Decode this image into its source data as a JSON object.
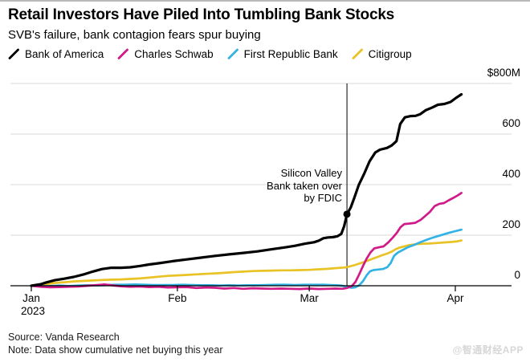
{
  "header": {
    "title": "Retail Investors Have Piled Into Tumbling Bank Stocks",
    "subtitle": "SVB's failure, bank contagion fears spur buying"
  },
  "footer": {
    "source": "Source: Vanda Research",
    "note": "Note: Data show cumulative net buying this year"
  },
  "watermark": "@智通财经APP",
  "chart_data": {
    "type": "line",
    "title": "Retail Investors Have Piled Into Tumbling Bank Stocks",
    "subtitle": "SVB's failure, bank contagion fears spur buying",
    "unit": "USD millions, cumulative net buying",
    "legend_position": "top",
    "grid": true,
    "x_axis": {
      "tick_labels": [
        "Jan",
        "Feb",
        "Mar",
        "Apr"
      ],
      "tick_days": [
        0,
        31,
        59,
        90
      ],
      "year_label": "2023",
      "domain_days": [
        0,
        91.5
      ]
    },
    "y_axis": {
      "range": [
        0,
        800
      ],
      "ticks": [
        {
          "label": "$800M",
          "value": 800
        },
        {
          "label": "600",
          "value": 600
        },
        {
          "label": "400",
          "value": 400
        },
        {
          "label": "200",
          "value": 200
        },
        {
          "label": "0",
          "value": 0
        }
      ]
    },
    "annotation": {
      "text": "Silicon Valley\nBank taken over\nby FDIC",
      "day": 67,
      "value": 283
    },
    "series": [
      {
        "name": "Bank of America",
        "color": "#000000",
        "width": 3.2,
        "points": [
          [
            0,
            0
          ],
          [
            2,
            6
          ],
          [
            3,
            12
          ],
          [
            5,
            22
          ],
          [
            7,
            28
          ],
          [
            9,
            35
          ],
          [
            11,
            44
          ],
          [
            13,
            56
          ],
          [
            15,
            66
          ],
          [
            17,
            71
          ],
          [
            19,
            71
          ],
          [
            21,
            73
          ],
          [
            23,
            78
          ],
          [
            25,
            84
          ],
          [
            27,
            89
          ],
          [
            30,
            97
          ],
          [
            33,
            104
          ],
          [
            36,
            111
          ],
          [
            39,
            118
          ],
          [
            42,
            124
          ],
          [
            45,
            130
          ],
          [
            48,
            136
          ],
          [
            51,
            144
          ],
          [
            54,
            152
          ],
          [
            56,
            158
          ],
          [
            58,
            166
          ],
          [
            60,
            172
          ],
          [
            61,
            178
          ],
          [
            62,
            188
          ],
          [
            63,
            191
          ],
          [
            64,
            192
          ],
          [
            65,
            196
          ],
          [
            65.8,
            205
          ],
          [
            66.4,
            235
          ],
          [
            67,
            283
          ],
          [
            67.8,
            310
          ],
          [
            68.5,
            345
          ],
          [
            69.5,
            398
          ],
          [
            70.7,
            445
          ],
          [
            71.8,
            492
          ],
          [
            73,
            527
          ],
          [
            74,
            538
          ],
          [
            75.5,
            545
          ],
          [
            76.5,
            555
          ],
          [
            77.5,
            572
          ],
          [
            78.3,
            640
          ],
          [
            79.3,
            666
          ],
          [
            80.5,
            671
          ],
          [
            81.6,
            672
          ],
          [
            82.5,
            678
          ],
          [
            83.7,
            694
          ],
          [
            85,
            704
          ],
          [
            86.3,
            716
          ],
          [
            87.7,
            719
          ],
          [
            89,
            727
          ],
          [
            90,
            741
          ],
          [
            91.3,
            757
          ]
        ]
      },
      {
        "name": "Charles Schwab",
        "color": "#d01a87",
        "width": 2.7,
        "points": [
          [
            0,
            0
          ],
          [
            2,
            -4
          ],
          [
            4,
            -6
          ],
          [
            6,
            -5
          ],
          [
            8,
            -4
          ],
          [
            10,
            -3
          ],
          [
            12,
            0
          ],
          [
            14,
            3
          ],
          [
            15.5,
            5
          ],
          [
            17,
            2
          ],
          [
            19,
            -2
          ],
          [
            21,
            -4
          ],
          [
            23,
            -3
          ],
          [
            25,
            -5
          ],
          [
            27,
            -4
          ],
          [
            29,
            -7
          ],
          [
            31,
            -6
          ],
          [
            33,
            -5
          ],
          [
            35,
            -9
          ],
          [
            37,
            -7
          ],
          [
            39,
            -8
          ],
          [
            41,
            -11
          ],
          [
            43,
            -9
          ],
          [
            45,
            -12
          ],
          [
            47,
            -10
          ],
          [
            49,
            -11
          ],
          [
            51,
            -12
          ],
          [
            53,
            -11
          ],
          [
            55,
            -12
          ],
          [
            57,
            -13
          ],
          [
            59,
            -11
          ],
          [
            61,
            -13
          ],
          [
            63,
            -12
          ],
          [
            64.5,
            -11
          ],
          [
            66,
            -12
          ],
          [
            67,
            -9
          ],
          [
            68,
            -2
          ],
          [
            68.8,
            15
          ],
          [
            69.6,
            45
          ],
          [
            70.4,
            78
          ],
          [
            71.2,
            108
          ],
          [
            72,
            132
          ],
          [
            72.8,
            148
          ],
          [
            73.8,
            152
          ],
          [
            74.8,
            156
          ],
          [
            75.8,
            172
          ],
          [
            76.8,
            192
          ],
          [
            77.6,
            210
          ],
          [
            78.4,
            232
          ],
          [
            79.2,
            244
          ],
          [
            80.3,
            246
          ],
          [
            81.5,
            249
          ],
          [
            82.6,
            260
          ],
          [
            83.6,
            276
          ],
          [
            84.6,
            292
          ],
          [
            85.6,
            315
          ],
          [
            86.6,
            324
          ],
          [
            87.6,
            327
          ],
          [
            88.6,
            338
          ],
          [
            89.6,
            348
          ],
          [
            90.5,
            357
          ],
          [
            91.3,
            367
          ]
        ]
      },
      {
        "name": "First Republic Bank",
        "color": "#33b2e4",
        "width": 2.7,
        "points": [
          [
            0,
            0
          ],
          [
            2,
            -2
          ],
          [
            4,
            -1
          ],
          [
            6,
            1
          ],
          [
            8,
            -1
          ],
          [
            10,
            1
          ],
          [
            12,
            2
          ],
          [
            14,
            1
          ],
          [
            16,
            3
          ],
          [
            18,
            4
          ],
          [
            20,
            4
          ],
          [
            22,
            5
          ],
          [
            24,
            4
          ],
          [
            26,
            3
          ],
          [
            28,
            3
          ],
          [
            30,
            3
          ],
          [
            32,
            4
          ],
          [
            34,
            3
          ],
          [
            36,
            2
          ],
          [
            38,
            2
          ],
          [
            40,
            1
          ],
          [
            42,
            2
          ],
          [
            44,
            1
          ],
          [
            46,
            2
          ],
          [
            48,
            2
          ],
          [
            50,
            3
          ],
          [
            52,
            4
          ],
          [
            54,
            4
          ],
          [
            56,
            3
          ],
          [
            58,
            4
          ],
          [
            60,
            4
          ],
          [
            62,
            4
          ],
          [
            63.5,
            3
          ],
          [
            65,
            2
          ],
          [
            66,
            0
          ],
          [
            67,
            -4
          ],
          [
            68,
            -8
          ],
          [
            68.8,
            -6
          ],
          [
            69.6,
            2
          ],
          [
            70.4,
            18
          ],
          [
            71.2,
            42
          ],
          [
            71.9,
            57
          ],
          [
            72.6,
            62
          ],
          [
            73.6,
            64
          ],
          [
            74.6,
            66
          ],
          [
            75.6,
            74
          ],
          [
            76.3,
            90
          ],
          [
            77,
            118
          ],
          [
            77.8,
            131
          ],
          [
            78.8,
            141
          ],
          [
            80,
            153
          ],
          [
            81.3,
            162
          ],
          [
            82.6,
            172
          ],
          [
            83.8,
            181
          ],
          [
            85,
            189
          ],
          [
            86.2,
            196
          ],
          [
            87.5,
            203
          ],
          [
            88.7,
            210
          ],
          [
            90,
            216
          ],
          [
            91.3,
            222
          ]
        ]
      },
      {
        "name": "Citigroup",
        "color": "#e9c325",
        "width": 2.7,
        "points": [
          [
            0,
            0
          ],
          [
            1.5,
            3
          ],
          [
            3,
            6
          ],
          [
            5,
            11
          ],
          [
            7,
            14
          ],
          [
            9,
            17
          ],
          [
            11,
            19
          ],
          [
            13,
            21
          ],
          [
            15,
            23
          ],
          [
            17,
            24
          ],
          [
            19,
            25
          ],
          [
            21,
            27
          ],
          [
            23,
            29
          ],
          [
            25,
            32
          ],
          [
            27,
            36
          ],
          [
            29,
            39
          ],
          [
            31,
            41
          ],
          [
            33,
            43
          ],
          [
            35,
            45
          ],
          [
            37,
            47
          ],
          [
            39,
            49
          ],
          [
            41,
            51
          ],
          [
            43,
            54
          ],
          [
            45,
            56
          ],
          [
            47,
            58
          ],
          [
            49,
            59
          ],
          [
            51,
            60
          ],
          [
            53,
            61
          ],
          [
            55,
            61
          ],
          [
            57,
            62
          ],
          [
            59,
            63
          ],
          [
            61,
            65
          ],
          [
            63,
            67
          ],
          [
            65,
            70
          ],
          [
            66.5,
            72
          ],
          [
            67.5,
            76
          ],
          [
            68.5,
            81
          ],
          [
            69.5,
            87
          ],
          [
            70.5,
            93
          ],
          [
            71.5,
            100
          ],
          [
            72.5,
            107
          ],
          [
            73.5,
            114
          ],
          [
            74.5,
            121
          ],
          [
            75.5,
            127
          ],
          [
            76.5,
            135
          ],
          [
            77.3,
            144
          ],
          [
            78.2,
            151
          ],
          [
            79.2,
            156
          ],
          [
            80.3,
            161
          ],
          [
            81.5,
            164
          ],
          [
            83,
            166
          ],
          [
            84.5,
            167
          ],
          [
            86,
            169
          ],
          [
            87.5,
            171
          ],
          [
            89,
            173
          ],
          [
            90.2,
            175
          ],
          [
            91.3,
            179
          ]
        ]
      }
    ]
  }
}
